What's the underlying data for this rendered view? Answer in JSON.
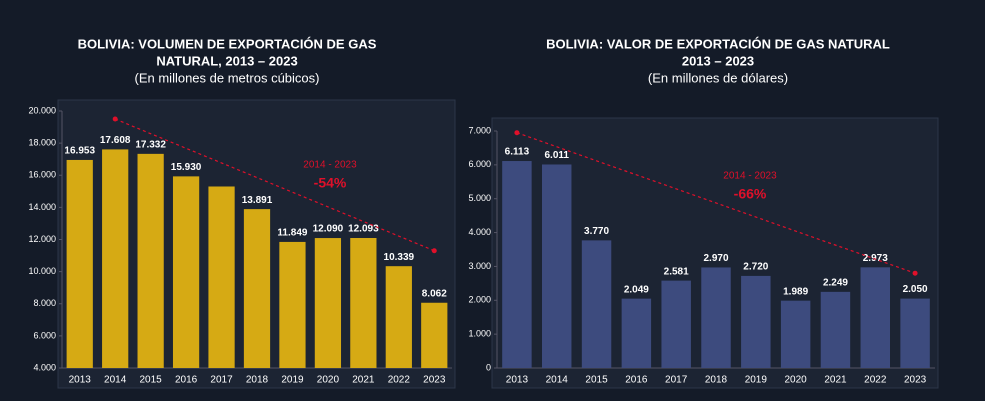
{
  "chart_data": [
    {
      "type": "bar",
      "title": [
        "BOLIVIA: VOLUMEN DE EXPORTACIÓN DE GAS",
        "NATURAL, 2013 – 2023"
      ],
      "subtitle": "(En millones de metros cúbicos)",
      "categories": [
        "2013",
        "2014",
        "2015",
        "2016",
        "2017",
        "2018",
        "2019",
        "2020",
        "2021",
        "2022",
        "2023"
      ],
      "values": [
        16953,
        17608,
        17332,
        15930,
        15300,
        13891,
        11849,
        12090,
        12093,
        10339,
        8062
      ],
      "value_labels": [
        "16.953",
        "17.608",
        "17.332",
        "15.930",
        null,
        "13.891",
        "11.849",
        "12.090",
        "12.093",
        "10.339",
        "8.062"
      ],
      "color": "#d6aa14",
      "ylim": [
        4000,
        20000
      ],
      "yticks": [
        {
          "value": 4000,
          "label": "4.000"
        },
        {
          "value": 6000,
          "label": "6.000"
        },
        {
          "value": 8000,
          "label": "8.000"
        },
        {
          "value": 10000,
          "label": "10.000"
        },
        {
          "value": 12000,
          "label": "12.000"
        },
        {
          "value": 14000,
          "label": "14.000"
        },
        {
          "value": 16000,
          "label": "16.000"
        },
        {
          "value": 18000,
          "label": "18.000"
        },
        {
          "value": 20000,
          "label": "20.000"
        }
      ],
      "trend": {
        "categories": [
          "2014",
          "2023"
        ],
        "values": [
          19500,
          11300
        ],
        "color": "#e0102a"
      },
      "annotations": [
        "2014 - 2023",
        "-54%"
      ]
    },
    {
      "type": "bar",
      "title": [
        "BOLIVIA: VALOR DE EXPORTACIÓN DE GAS NATURAL",
        "2013 – 2023"
      ],
      "subtitle": "(En millones de dólares)",
      "categories": [
        "2013",
        "2014",
        "2015",
        "2016",
        "2017",
        "2018",
        "2019",
        "2020",
        "2021",
        "2022",
        "2023"
      ],
      "values": [
        6113,
        6011,
        3770,
        2049,
        2581,
        2970,
        2720,
        1989,
        2249,
        2973,
        2050
      ],
      "value_labels": [
        "6.113",
        "6.011",
        "3.770",
        "2.049",
        "2.581",
        "2.970",
        "2.720",
        "1.989",
        "2.249",
        "2.973",
        "2.050"
      ],
      "color": "#3d4b7e",
      "ylim": [
        0,
        7000
      ],
      "yticks": [
        0,
        {
          "value": 1000,
          "label": "1.000"
        },
        {
          "value": 2000,
          "label": "2.000"
        },
        {
          "value": 3000,
          "label": "3.000"
        },
        {
          "value": 4000,
          "label": "4.000"
        },
        {
          "value": 5000,
          "label": "5.000"
        },
        {
          "value": 6000,
          "label": "6.000"
        },
        {
          "value": 7000,
          "label": "7.000"
        }
      ],
      "trend": {
        "categories": [
          "2013",
          "2023"
        ],
        "values": [
          6950,
          2800
        ],
        "color": "#e0102a"
      },
      "annotations": [
        "2014 - 2023",
        "-66%"
      ]
    }
  ]
}
